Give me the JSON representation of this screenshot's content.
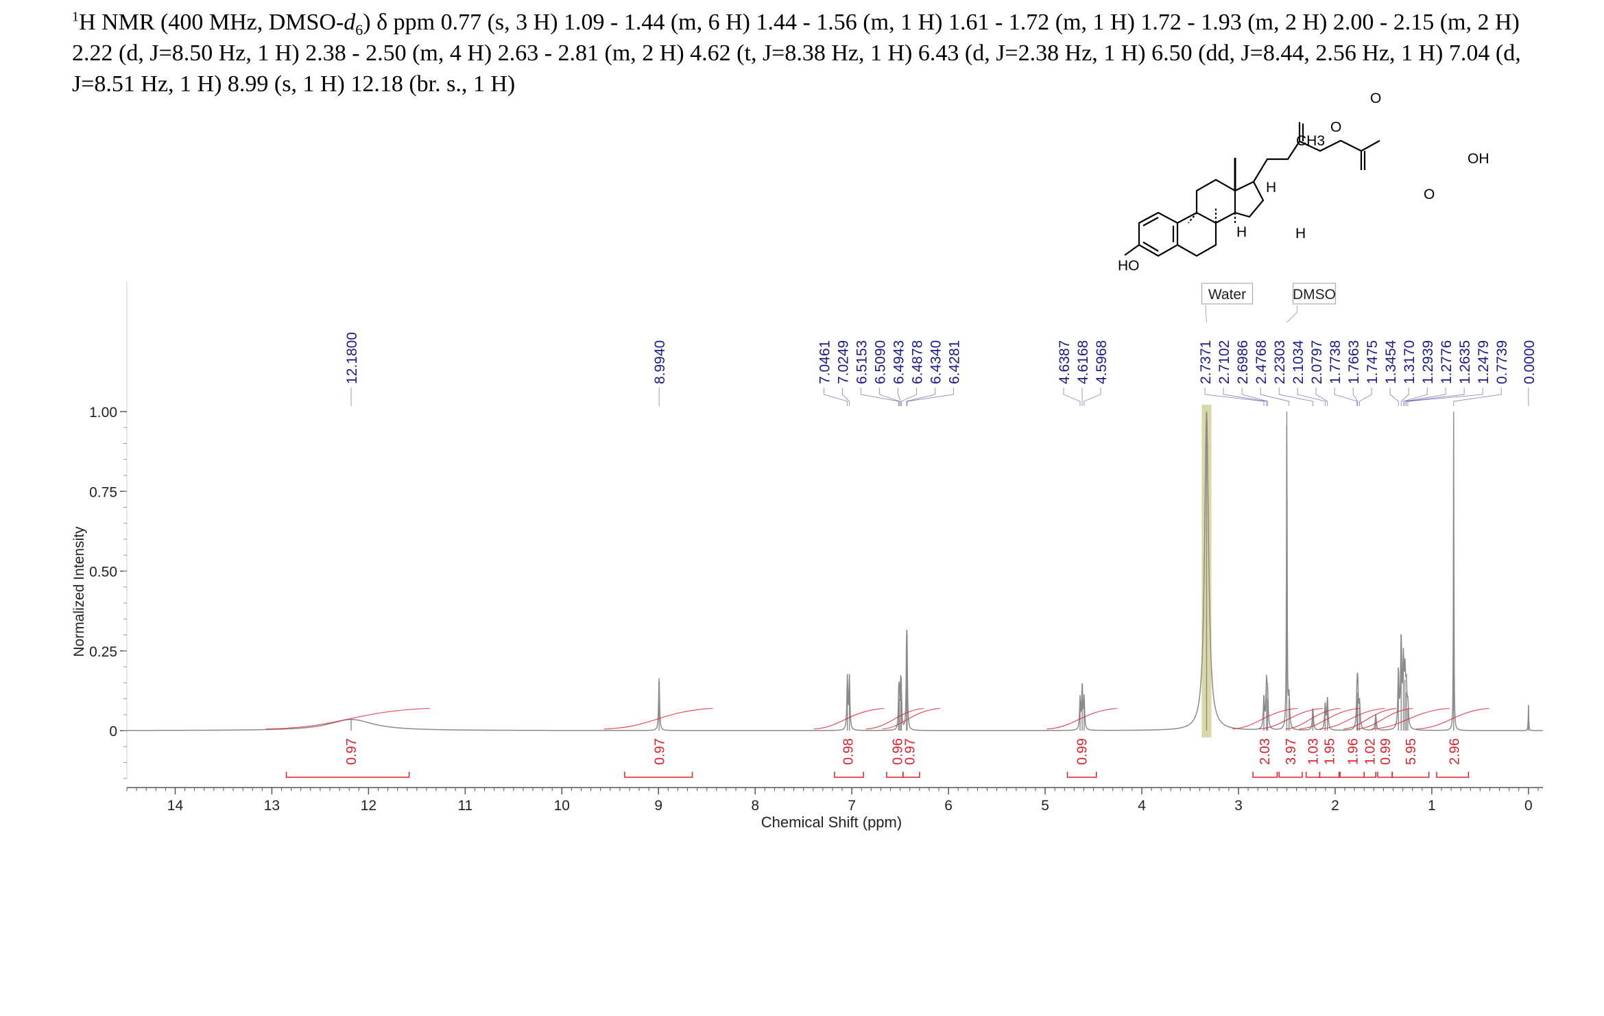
{
  "header": {
    "nucleus_sup": "1",
    "nucleus": "H",
    "line_1a": " NMR (400 MHz, DMSO-",
    "solvent_d": "d",
    "solvent_sub": "6",
    "line_1b": ") δ ppm 0.77 (s, 3 H) 1.09 - 1.44 (m, 6 H) 1.44 - 1.56 (m, 1 H) 1.61 - 1.72 (m, 1 H) 1.72 - 1.93 (m, 2 H) 2.00 - 2.15 (m, 2 H)",
    "line_2": "2.22 (d, J=8.50 Hz, 1 H) 2.38 - 2.50 (m, 4 H) 2.63 - 2.81 (m, 2 H) 4.62 (t, J=8.38 Hz, 1 H) 6.43 (d, J=2.38 Hz, 1 H) 6.50 (dd, J=8.44, 2.56 Hz, 1 H) 7.04 (d,",
    "line_3": "J=8.51 Hz, 1 H) 8.99 (s, 1 H) 12.18 (br. s., 1 H)"
  },
  "structure": {
    "labels": [
      "CH3",
      "O",
      "O",
      "OH",
      "O",
      "H",
      "H",
      "H",
      "HO"
    ]
  },
  "chart_data": {
    "type": "line",
    "title": "",
    "xlabel": "Chemical Shift (ppm)",
    "ylabel": "Normalized Intensity",
    "xlim": [
      14.5,
      -0.15
    ],
    "ylim": [
      -0.2,
      1.05
    ],
    "x_ticks": [
      14,
      13,
      12,
      11,
      10,
      9,
      8,
      7,
      6,
      5,
      4,
      3,
      2,
      1,
      0
    ],
    "y_ticks": [
      {
        "value": 1.0,
        "label": "1.00"
      },
      {
        "value": 0.75,
        "label": "0.75"
      },
      {
        "value": 0.5,
        "label": "0.50"
      },
      {
        "value": 0.25,
        "label": "0.25"
      },
      {
        "value": 0,
        "label": "0"
      }
    ],
    "peak_labels": [
      {
        "group": [
          12.18
        ],
        "labels": [
          "12.1800"
        ]
      },
      {
        "group": [
          8.994
        ],
        "labels": [
          "8.9940"
        ]
      },
      {
        "group": [
          7.0461,
          7.0249,
          6.5153,
          6.509,
          6.4943,
          6.4878,
          6.434,
          6.4281
        ],
        "labels": [
          "7.0461",
          "7.0249",
          "6.5153",
          "6.5090",
          "6.4943",
          "6.4878",
          "6.4340",
          "6.4281"
        ]
      },
      {
        "group": [
          4.6387,
          4.6168,
          4.5968
        ],
        "labels": [
          "4.6387",
          "4.6168",
          "4.5968"
        ]
      },
      {
        "group": [
          2.7371,
          2.7102,
          2.6986,
          2.4768,
          2.2303,
          2.1034,
          2.0797,
          1.7738,
          1.7663,
          1.7475,
          1.3454,
          1.317,
          1.2939,
          1.2776,
          1.2635,
          1.2479,
          0.7739
        ],
        "labels": [
          "2.7371",
          "2.7102",
          "2.6986",
          "2.4768",
          "2.2303",
          "2.1034",
          "2.0797",
          "1.7738",
          "1.7663",
          "1.7475",
          "1.3454",
          "1.3170",
          "1.2939",
          "1.2776",
          "1.2635",
          "1.2479",
          "0.7739"
        ]
      },
      {
        "group": [
          0.0
        ],
        "labels": [
          "0.0000"
        ]
      }
    ],
    "solvent_annotations": [
      {
        "label": "Water",
        "from": 3.38,
        "to": 3.28
      },
      {
        "label": "DMSO",
        "from": 2.51,
        "to": 2.49
      }
    ],
    "integrals": [
      {
        "from": 12.85,
        "to": 11.58,
        "center": 12.18,
        "value": "0.97"
      },
      {
        "from": 9.35,
        "to": 8.65,
        "center": 8.99,
        "value": "0.97"
      },
      {
        "from": 7.18,
        "to": 6.88,
        "center": 7.04,
        "value": "0.98"
      },
      {
        "from": 6.64,
        "to": 6.47,
        "center": 6.53,
        "value": "0.96"
      },
      {
        "from": 6.47,
        "to": 6.3,
        "center": 6.4,
        "value": "0.97"
      },
      {
        "from": 4.77,
        "to": 4.47,
        "center": 4.62,
        "value": "0.99"
      },
      {
        "from": 2.85,
        "to": 2.6,
        "center": 2.73,
        "value": "2.03"
      },
      {
        "from": 2.58,
        "to": 2.34,
        "center": 2.46,
        "value": "3.97"
      },
      {
        "from": 2.3,
        "to": 2.16,
        "center": 2.23,
        "value": "1.03"
      },
      {
        "from": 2.16,
        "to": 1.96,
        "center": 2.06,
        "value": "1.95"
      },
      {
        "from": 1.95,
        "to": 1.7,
        "center": 1.82,
        "value": "1.96"
      },
      {
        "from": 1.7,
        "to": 1.58,
        "center": 1.64,
        "value": "1.02"
      },
      {
        "from": 1.56,
        "to": 1.41,
        "center": 1.48,
        "value": "0.99"
      },
      {
        "from": 1.41,
        "to": 1.03,
        "center": 1.22,
        "value": "5.95"
      },
      {
        "from": 0.95,
        "to": 0.62,
        "center": 0.77,
        "value": "2.96"
      }
    ],
    "peaks": [
      {
        "ppm": 12.18,
        "height": 0.035,
        "width": 0.28
      },
      {
        "ppm": 8.994,
        "height": 0.165,
        "width": 0.006
      },
      {
        "ppm": 7.0461,
        "height": 0.165,
        "width": 0.006
      },
      {
        "ppm": 7.0249,
        "height": 0.165,
        "width": 0.006
      },
      {
        "ppm": 6.5153,
        "height": 0.09,
        "width": 0.005
      },
      {
        "ppm": 6.509,
        "height": 0.1,
        "width": 0.005
      },
      {
        "ppm": 6.4943,
        "height": 0.12,
        "width": 0.005
      },
      {
        "ppm": 6.4878,
        "height": 0.1,
        "width": 0.005
      },
      {
        "ppm": 6.434,
        "height": 0.22,
        "width": 0.005
      },
      {
        "ppm": 6.4281,
        "height": 0.2,
        "width": 0.005
      },
      {
        "ppm": 4.6387,
        "height": 0.1,
        "width": 0.006
      },
      {
        "ppm": 4.6168,
        "height": 0.14,
        "width": 0.006
      },
      {
        "ppm": 4.5968,
        "height": 0.1,
        "width": 0.006
      },
      {
        "ppm": 3.33,
        "height": 1.0,
        "width": 0.025
      },
      {
        "ppm": 2.7371,
        "height": 0.1,
        "width": 0.007
      },
      {
        "ppm": 2.7102,
        "height": 0.14,
        "width": 0.007
      },
      {
        "ppm": 2.6986,
        "height": 0.1,
        "width": 0.007
      },
      {
        "ppm": 2.5,
        "height": 1.0,
        "width": 0.004
      },
      {
        "ppm": 2.4768,
        "height": 0.1,
        "width": 0.007
      },
      {
        "ppm": 2.2303,
        "height": 0.07,
        "width": 0.007
      },
      {
        "ppm": 2.1034,
        "height": 0.08,
        "width": 0.007
      },
      {
        "ppm": 2.0797,
        "height": 0.1,
        "width": 0.007
      },
      {
        "ppm": 1.7738,
        "height": 0.1,
        "width": 0.007
      },
      {
        "ppm": 1.7663,
        "height": 0.12,
        "width": 0.007
      },
      {
        "ppm": 1.7475,
        "height": 0.08,
        "width": 0.007
      },
      {
        "ppm": 1.58,
        "height": 0.05,
        "width": 0.007
      },
      {
        "ppm": 1.3454,
        "height": 0.18,
        "width": 0.007
      },
      {
        "ppm": 1.317,
        "height": 0.28,
        "width": 0.007
      },
      {
        "ppm": 1.2939,
        "height": 0.2,
        "width": 0.007
      },
      {
        "ppm": 1.2776,
        "height": 0.16,
        "width": 0.007
      },
      {
        "ppm": 1.2635,
        "height": 0.12,
        "width": 0.007
      },
      {
        "ppm": 1.2479,
        "height": 0.07,
        "width": 0.007
      },
      {
        "ppm": 0.7739,
        "height": 1.0,
        "width": 0.003
      },
      {
        "ppm": 0.0,
        "height": 0.08,
        "width": 0.003
      }
    ],
    "water_band": [
      3.38,
      3.28
    ],
    "colors": {
      "spectrum": "#8a8a8a",
      "integral": "#e0202a",
      "peak_label": "#1a1a8c",
      "water_band": "#cccc8a",
      "axis": "#555555"
    }
  }
}
